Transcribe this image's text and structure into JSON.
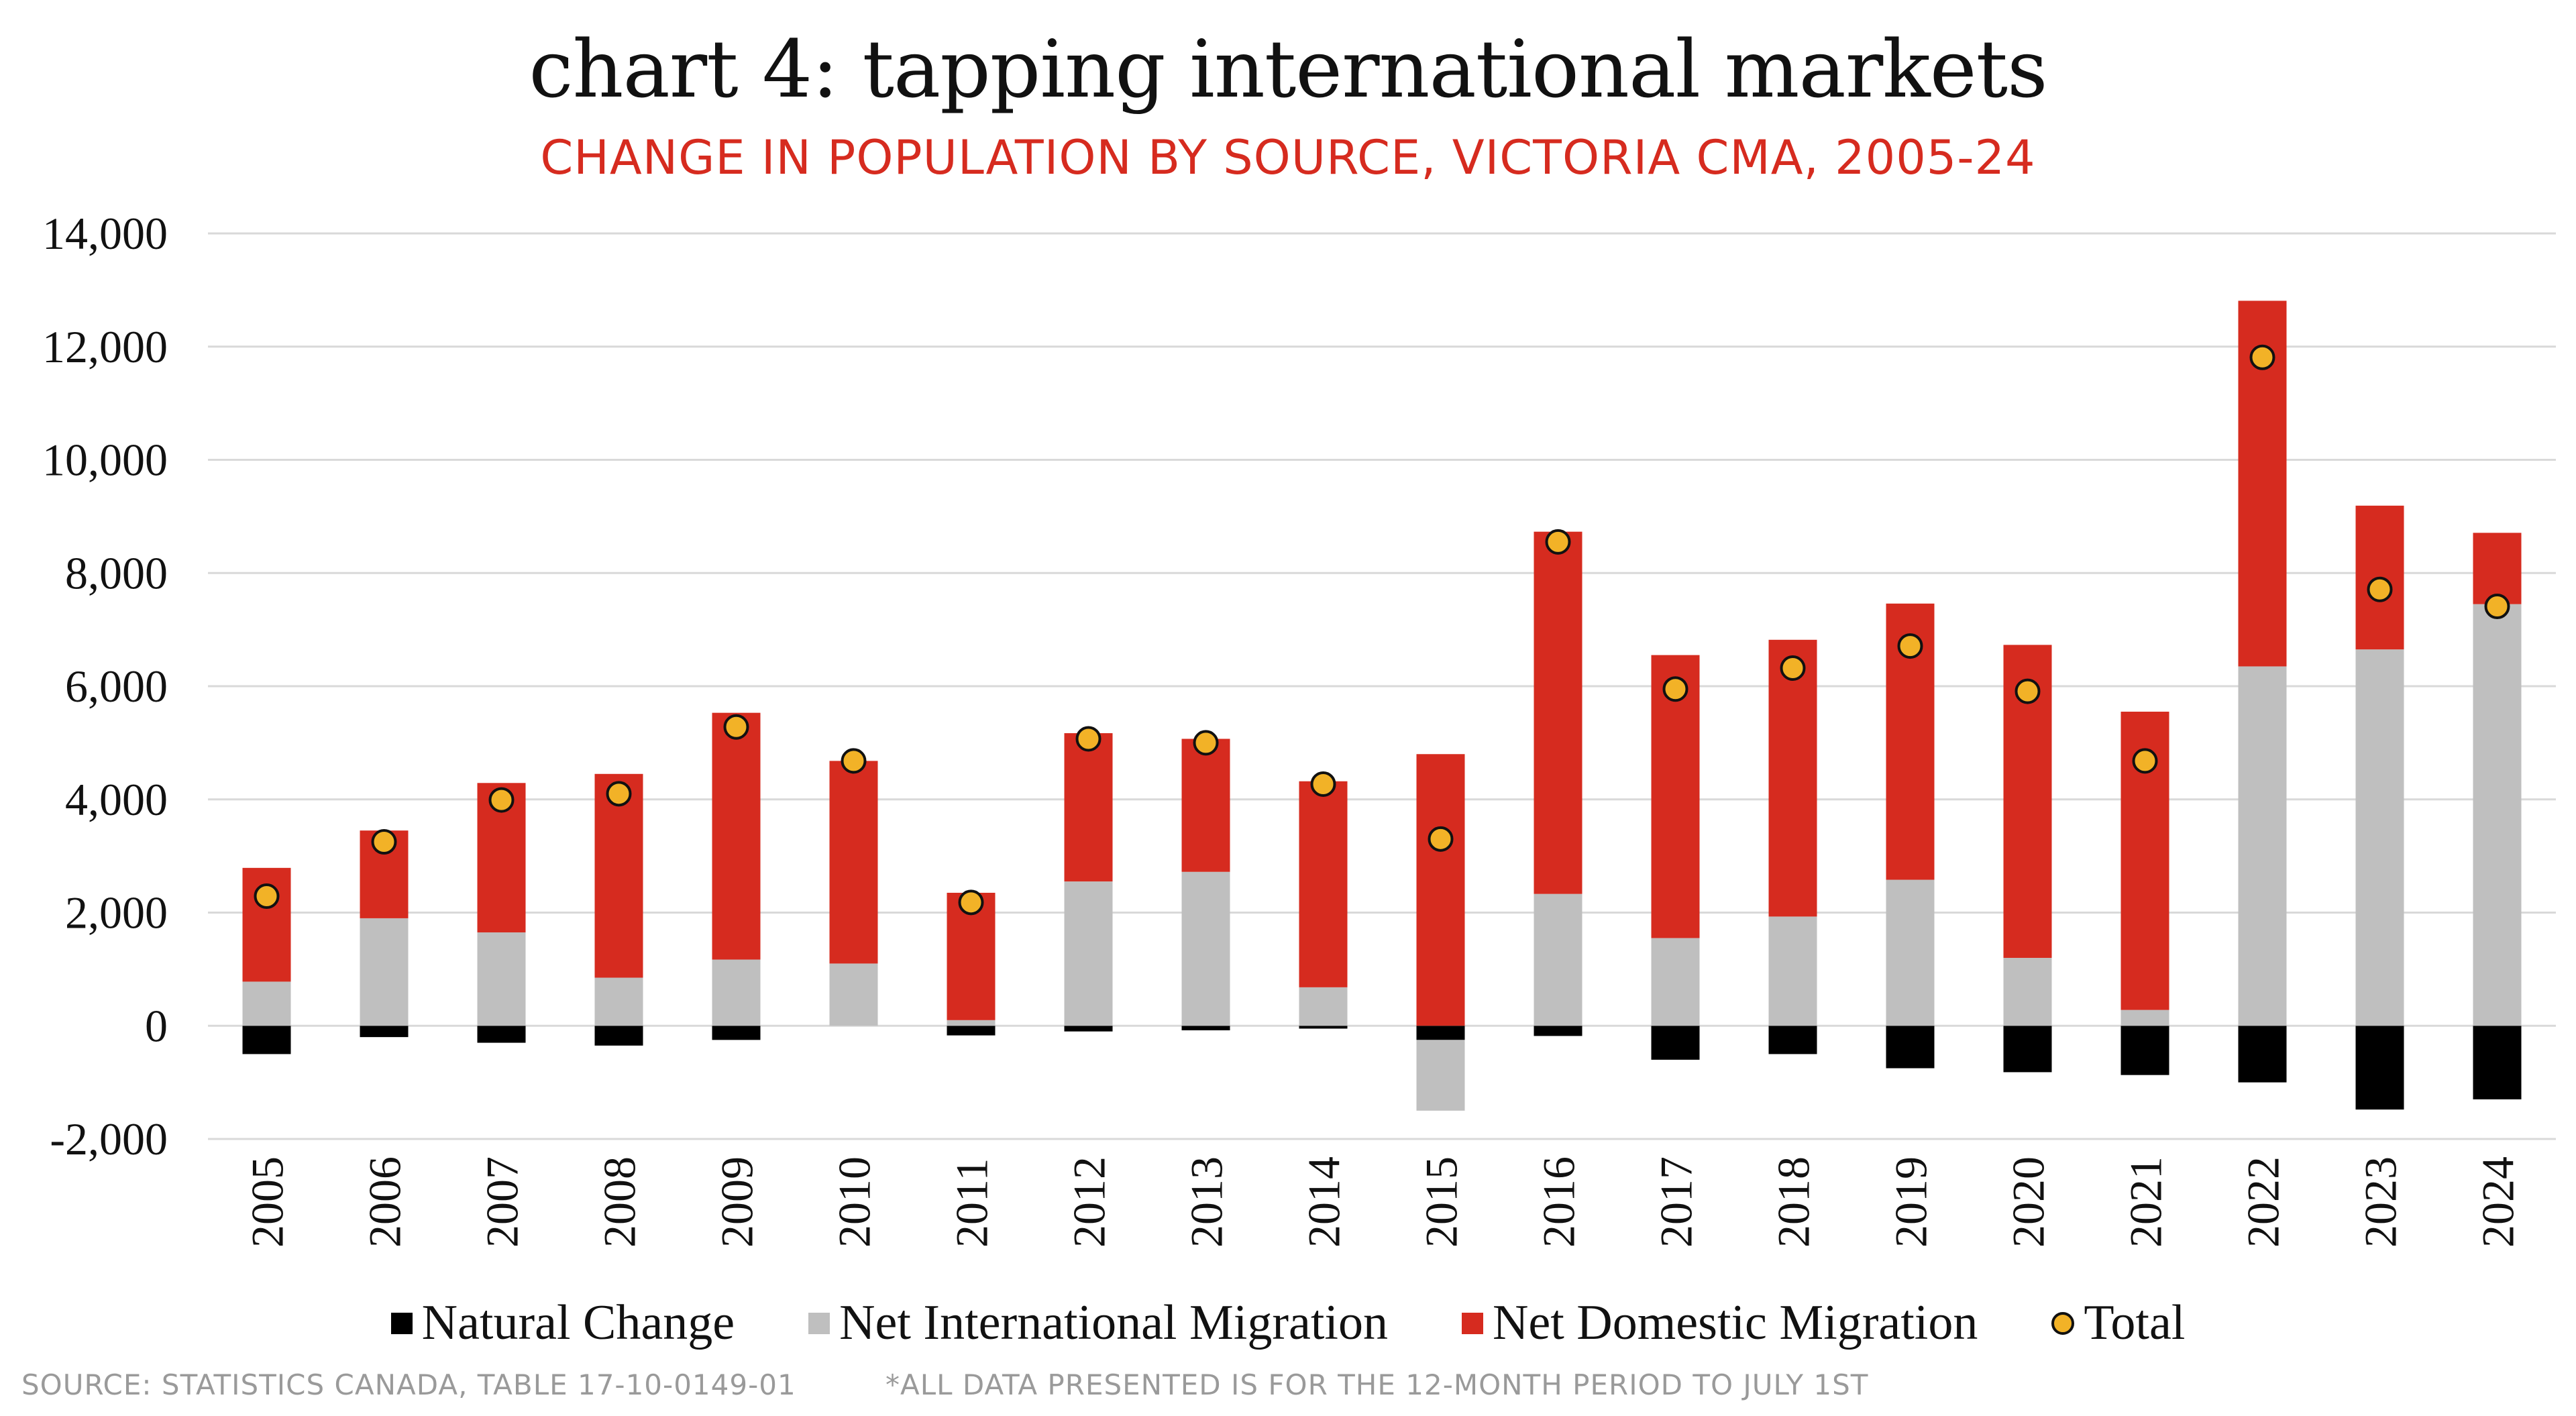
{
  "title": "chart 4: tapping international markets",
  "subtitle": "CHANGE IN POPULATION BY SOURCE, VICTORIA CMA, 2005-24",
  "footer": {
    "source": "SOURCE: STATISTICS CANADA, TABLE 17-10-0149-01",
    "note": "*ALL DATA PRESENTED IS FOR THE 12-MONTH PERIOD TO JULY 1ST"
  },
  "colors": {
    "natural": "#000000",
    "international": "#bfbfbf",
    "domestic": "#d62b1f",
    "total": "#f2b227"
  },
  "legend": {
    "natural": "Natural Change",
    "international": "Net International Migration",
    "domestic": "Net Domestic Migration",
    "total": "Total"
  },
  "chart_data": {
    "type": "bar",
    "stacked": true,
    "ylim": [
      -2000,
      14000
    ],
    "yticks": [
      -2000,
      0,
      2000,
      4000,
      6000,
      8000,
      10000,
      12000,
      14000
    ],
    "ytick_labels": [
      "-2,000",
      "0",
      "2,000",
      "4,000",
      "6,000",
      "8,000",
      "10,000",
      "12,000",
      "14,000"
    ],
    "grid": true,
    "legend_position": "bottom",
    "categories": [
      "2005",
      "2006",
      "2007",
      "2008",
      "2009",
      "2010",
      "2011",
      "2012",
      "2013",
      "2014",
      "2015",
      "2016",
      "2017",
      "2018",
      "2019",
      "2020",
      "2021",
      "2022",
      "2023",
      "2024"
    ],
    "series": [
      {
        "name": "Natural Change",
        "values": [
          -500,
          -200,
          -300,
          -350,
          -250,
          0,
          -170,
          -100,
          -80,
          -50,
          -250,
          -180,
          -600,
          -500,
          -750,
          -820,
          -870,
          -1000,
          -1480,
          -1300
        ]
      },
      {
        "name": "Net International Migration",
        "values": [
          780,
          1900,
          1650,
          850,
          1170,
          1100,
          100,
          2550,
          2720,
          680,
          -1250,
          2330,
          1550,
          1930,
          2580,
          1200,
          280,
          6350,
          6650,
          7450
        ]
      },
      {
        "name": "Net Domestic Migration",
        "values": [
          2010,
          1550,
          2640,
          3600,
          4360,
          3580,
          2250,
          2620,
          2350,
          3640,
          4800,
          6400,
          5000,
          4890,
          4880,
          5530,
          5270,
          6460,
          2540,
          1260
        ]
      },
      {
        "name": "Total",
        "values": [
          2290,
          3250,
          3990,
          4100,
          5280,
          4680,
          2180,
          5070,
          5000,
          4270,
          3300,
          8550,
          5950,
          6320,
          6710,
          5910,
          4680,
          11810,
          7710,
          7410
        ]
      }
    ]
  }
}
